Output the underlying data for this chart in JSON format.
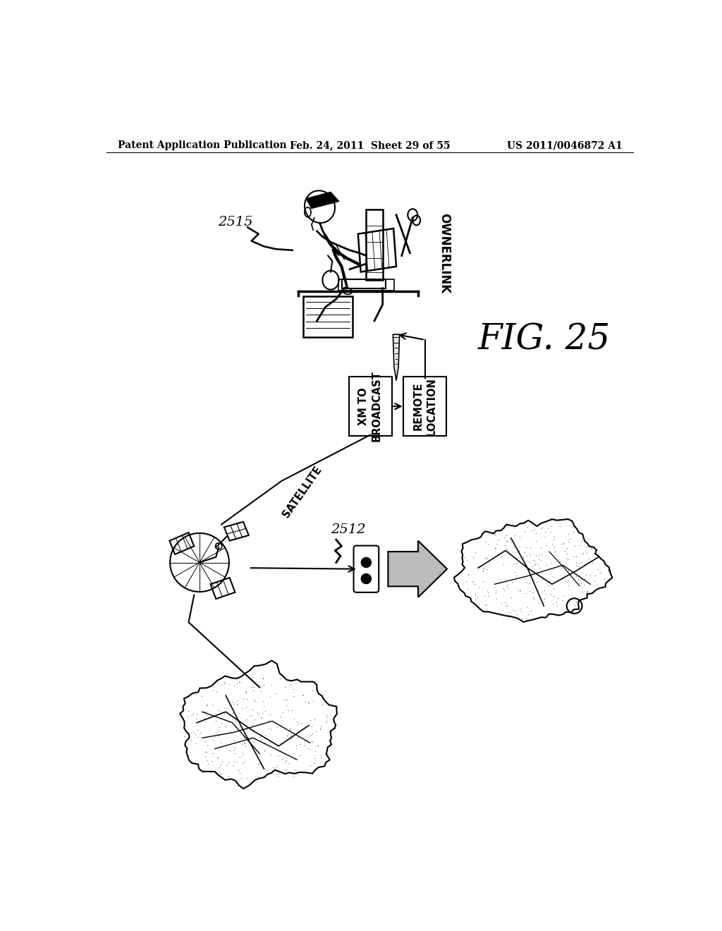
{
  "header_left": "Patent Application Publication",
  "header_mid": "Feb. 24, 2011  Sheet 29 of 55",
  "header_right": "US 2011/0046872 A1",
  "fig_label": "FIG. 25",
  "label_2515": "2515",
  "label_2512": "2512",
  "label_ownerlink": "OWNERLINK",
  "label_satellite": "SATELLITE",
  "label_xm_broadcast": "XM TO\nBROADCAST",
  "label_remote_location": "REMOTE\nLOCATION",
  "bg_color": "#ffffff"
}
